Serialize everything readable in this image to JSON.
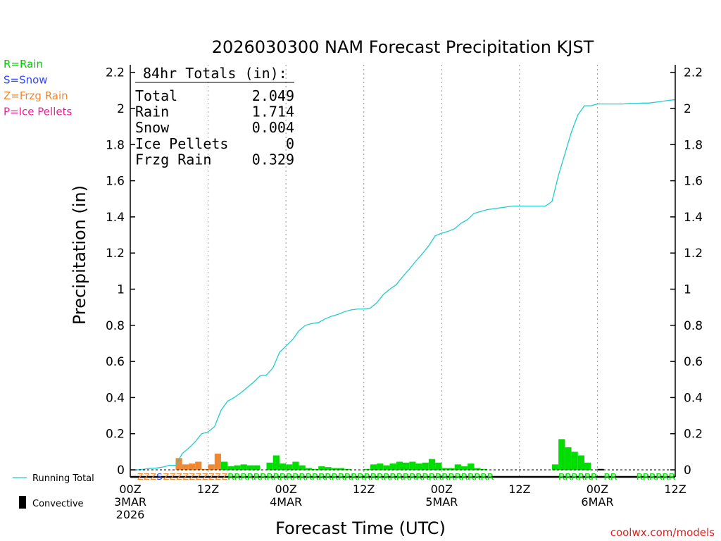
{
  "title": "2026030300 NAM Forecast Precipitation KJST",
  "legend_types": [
    {
      "label": "R=Rain",
      "color": "#00cc00"
    },
    {
      "label": "S=Snow",
      "color": "#3344ff"
    },
    {
      "label": "Z=Frzg Rain",
      "color": "#ee8833"
    },
    {
      "label": "P=Ice Pellets",
      "color": "#ee2299"
    }
  ],
  "totals": {
    "header": "84hr Totals (in):",
    "rows": [
      {
        "label": "Total",
        "value": "2.049"
      },
      {
        "label": "Rain",
        "value": "1.714"
      },
      {
        "label": "Snow",
        "value": "0.004"
      },
      {
        "label": "Ice Pellets",
        "value": "0"
      },
      {
        "label": "Frzg Rain",
        "value": "0.329"
      }
    ]
  },
  "legend_running_total": "Running Total",
  "legend_convective": "Convective",
  "credit": "coolwx.com/models",
  "colors": {
    "rain": "#00dd00",
    "snow": "#3344ff",
    "frzg": "#ee8833",
    "running": "#22cccc",
    "convective": "#000000"
  },
  "chart_data": {
    "type": "bar",
    "title": "2026030300 NAM Forecast Precipitation KJST",
    "xlabel": "Forecast Time (UTC)",
    "ylabel": "Precipitation (in)",
    "ylim": [
      0,
      2.25
    ],
    "xlim_hours": [
      0,
      84
    ],
    "y_ticks": [
      "0",
      "0.2",
      "0.4",
      "0.6",
      "0.8",
      "1",
      "1.2",
      "1.4",
      "1.6",
      "1.8",
      "2",
      "2.2"
    ],
    "x_ticks": [
      {
        "hour": 0,
        "lines": [
          "00Z",
          "3MAR",
          "2026"
        ]
      },
      {
        "hour": 12,
        "lines": [
          "12Z"
        ]
      },
      {
        "hour": 24,
        "lines": [
          "00Z",
          "4MAR"
        ]
      },
      {
        "hour": 36,
        "lines": [
          "12Z"
        ]
      },
      {
        "hour": 48,
        "lines": [
          "00Z",
          "5MAR"
        ]
      },
      {
        "hour": 60,
        "lines": [
          "12Z"
        ]
      },
      {
        "hour": 72,
        "lines": [
          "00Z",
          "6MAR"
        ]
      },
      {
        "hour": 84,
        "lines": [
          "12Z"
        ]
      }
    ],
    "hourly_bars": [
      {
        "hour": 8,
        "value": 0.065,
        "type": "frzg"
      },
      {
        "hour": 9,
        "value": 0.03,
        "type": "frzg"
      },
      {
        "hour": 10,
        "value": 0.035,
        "type": "frzg"
      },
      {
        "hour": 11,
        "value": 0.045,
        "type": "frzg"
      },
      {
        "hour": 12,
        "value": 0.005,
        "type": "frzg"
      },
      {
        "hour": 13,
        "value": 0.03,
        "type": "frzg"
      },
      {
        "hour": 14,
        "value": 0.09,
        "type": "frzg"
      },
      {
        "hour": 15,
        "value": 0.045,
        "type": "rain"
      },
      {
        "hour": 16,
        "value": 0.02,
        "type": "rain"
      },
      {
        "hour": 17,
        "value": 0.025,
        "type": "rain"
      },
      {
        "hour": 18,
        "value": 0.03,
        "type": "rain"
      },
      {
        "hour": 19,
        "value": 0.025,
        "type": "rain"
      },
      {
        "hour": 20,
        "value": 0.025,
        "type": "rain"
      },
      {
        "hour": 22,
        "value": 0.04,
        "type": "rain"
      },
      {
        "hour": 23,
        "value": 0.08,
        "type": "rain"
      },
      {
        "hour": 24,
        "value": 0.035,
        "type": "rain"
      },
      {
        "hour": 25,
        "value": 0.03,
        "type": "rain"
      },
      {
        "hour": 26,
        "value": 0.045,
        "type": "rain"
      },
      {
        "hour": 27,
        "value": 0.025,
        "type": "rain"
      },
      {
        "hour": 28,
        "value": 0.01,
        "type": "rain"
      },
      {
        "hour": 29,
        "value": 0.005,
        "type": "rain"
      },
      {
        "hour": 30,
        "value": 0.02,
        "type": "rain"
      },
      {
        "hour": 31,
        "value": 0.015,
        "type": "rain"
      },
      {
        "hour": 32,
        "value": 0.01,
        "type": "rain"
      },
      {
        "hour": 33,
        "value": 0.01,
        "type": "rain"
      },
      {
        "hour": 34,
        "value": 0.005,
        "type": "rain"
      },
      {
        "hour": 37,
        "value": 0.005,
        "type": "rain"
      },
      {
        "hour": 38,
        "value": 0.03,
        "type": "rain"
      },
      {
        "hour": 39,
        "value": 0.035,
        "type": "rain"
      },
      {
        "hour": 40,
        "value": 0.025,
        "type": "rain"
      },
      {
        "hour": 41,
        "value": 0.035,
        "type": "rain"
      },
      {
        "hour": 42,
        "value": 0.045,
        "type": "rain"
      },
      {
        "hour": 43,
        "value": 0.04,
        "type": "rain"
      },
      {
        "hour": 44,
        "value": 0.045,
        "type": "rain"
      },
      {
        "hour": 45,
        "value": 0.035,
        "type": "rain"
      },
      {
        "hour": 46,
        "value": 0.04,
        "type": "rain"
      },
      {
        "hour": 47,
        "value": 0.06,
        "type": "rain"
      },
      {
        "hour": 48,
        "value": 0.04,
        "type": "rain"
      },
      {
        "hour": 49,
        "value": 0.01,
        "type": "rain"
      },
      {
        "hour": 50,
        "value": 0.01,
        "type": "rain"
      },
      {
        "hour": 51,
        "value": 0.03,
        "type": "rain"
      },
      {
        "hour": 52,
        "value": 0.02,
        "type": "rain"
      },
      {
        "hour": 53,
        "value": 0.035,
        "type": "rain"
      },
      {
        "hour": 54,
        "value": 0.01,
        "type": "rain"
      },
      {
        "hour": 55,
        "value": 0.005,
        "type": "rain"
      },
      {
        "hour": 66,
        "value": 0.03,
        "type": "rain"
      },
      {
        "hour": 67,
        "value": 0.17,
        "type": "rain"
      },
      {
        "hour": 68,
        "value": 0.125,
        "type": "rain"
      },
      {
        "hour": 69,
        "value": 0.1,
        "type": "rain"
      },
      {
        "hour": 70,
        "value": 0.08,
        "type": "rain"
      },
      {
        "hour": 71,
        "value": 0.04,
        "type": "rain"
      }
    ],
    "convective_bars": [
      {
        "hour": 73,
        "value": 0.005
      }
    ],
    "running_total": {
      "hours": [
        0,
        1,
        2,
        3,
        4,
        5,
        6,
        7,
        8,
        9,
        10,
        11,
        12,
        13,
        14,
        15,
        16,
        17,
        18,
        19,
        20,
        21,
        22,
        23,
        24,
        25,
        26,
        27,
        28,
        29,
        30,
        31,
        32,
        33,
        34,
        35,
        36,
        37,
        38,
        39,
        40,
        41,
        42,
        43,
        44,
        45,
        46,
        47,
        48,
        49,
        50,
        51,
        52,
        53,
        54,
        55,
        56,
        57,
        58,
        59,
        60,
        61,
        62,
        63,
        64,
        65,
        66,
        67,
        68,
        69,
        70,
        71,
        72,
        73,
        74,
        75,
        76,
        77,
        78,
        79,
        80,
        81,
        82,
        83,
        84
      ],
      "values": [
        0,
        0,
        0.003,
        0.008,
        0.01,
        0.015,
        0.025,
        0.025,
        0.09,
        0.12,
        0.155,
        0.2,
        0.21,
        0.24,
        0.33,
        0.38,
        0.4,
        0.425,
        0.455,
        0.485,
        0.52,
        0.525,
        0.565,
        0.65,
        0.685,
        0.72,
        0.77,
        0.8,
        0.81,
        0.815,
        0.835,
        0.85,
        0.86,
        0.875,
        0.885,
        0.89,
        0.89,
        0.895,
        0.925,
        0.97,
        1.0,
        1.025,
        1.07,
        1.11,
        1.155,
        1.195,
        1.24,
        1.295,
        1.31,
        1.32,
        1.335,
        1.365,
        1.385,
        1.42,
        1.43,
        1.44,
        1.445,
        1.45,
        1.455,
        1.46,
        1.46,
        1.46,
        1.46,
        1.46,
        1.46,
        1.485,
        1.63,
        1.75,
        1.87,
        1.965,
        2.015,
        2.015,
        2.025,
        2.025,
        2.025,
        2.025,
        2.025,
        2.028,
        2.028,
        2.03,
        2.03,
        2.035,
        2.04,
        2.045,
        2.049
      ]
    },
    "type_codes": [
      {
        "start_hour": 1,
        "end_hour": 4,
        "code": "Z",
        "type": "frzg"
      },
      {
        "start_hour": 4,
        "end_hour": 5,
        "code": "S",
        "type": "snow"
      },
      {
        "start_hour": 5,
        "end_hour": 15,
        "code": "Z",
        "type": "frzg"
      },
      {
        "start_hour": 15,
        "end_hour": 56,
        "code": "R",
        "type": "rain"
      },
      {
        "start_hour": 66,
        "end_hour": 72,
        "code": "R",
        "type": "rain"
      },
      {
        "start_hour": 73,
        "end_hour": 75,
        "code": "R",
        "type": "rain"
      },
      {
        "start_hour": 78,
        "end_hour": 84,
        "code": "R",
        "type": "rain"
      }
    ]
  }
}
